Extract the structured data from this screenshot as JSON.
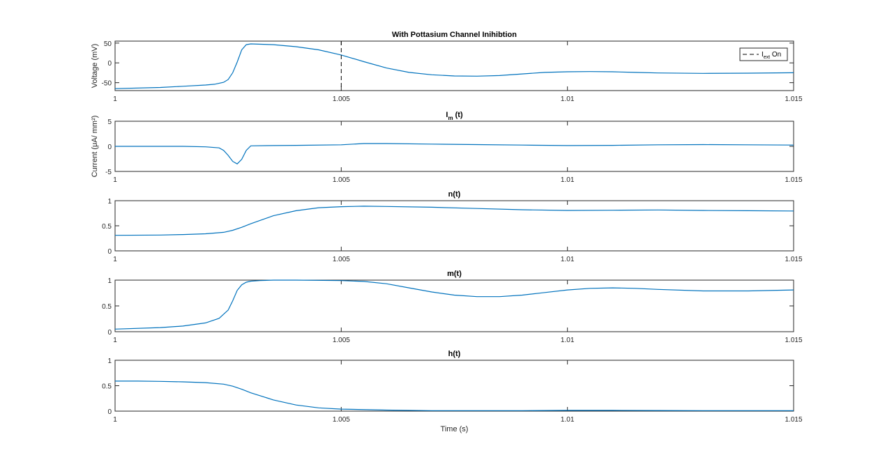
{
  "chart_data": [
    {
      "type": "line",
      "title": "With Pottasium Channel Inihibtion",
      "ylabel": "Voltage (mV)",
      "xlabel": "",
      "xlim": [
        1,
        1.015
      ],
      "ylim": [
        -70,
        55
      ],
      "xticks": [
        "1",
        "1.005",
        "1.01",
        "1.015"
      ],
      "yticks": [
        "50",
        "0",
        "-50"
      ],
      "grid": false,
      "legend": {
        "placement": "top-right",
        "entries": [
          {
            "main": "I",
            "sub": "ext",
            "after": " On"
          }
        ]
      },
      "vline_x": 1.005,
      "series": [
        {
          "color": "#0072BD",
          "x": [
            1.0,
            1.001,
            1.0015,
            1.002,
            1.0022,
            1.0024,
            1.0025,
            1.0026,
            1.0027,
            1.0028,
            1.0029,
            1.003,
            1.0035,
            1.004,
            1.0045,
            1.005,
            1.0055,
            1.006,
            1.0065,
            1.007,
            1.0075,
            1.008,
            1.0085,
            1.009,
            1.0095,
            1.01,
            1.0105,
            1.011,
            1.0115,
            1.012,
            1.013,
            1.014,
            1.015
          ],
          "y": [
            -65,
            -62,
            -59,
            -56,
            -54,
            -49,
            -42,
            -25,
            2,
            33,
            46,
            48,
            46,
            41,
            33,
            20,
            3,
            -13,
            -24,
            -30,
            -33,
            -33.5,
            -32,
            -28,
            -24,
            -22.5,
            -22,
            -22.5,
            -24,
            -25.5,
            -26.5,
            -26,
            -25
          ]
        }
      ]
    },
    {
      "type": "line",
      "title": "I",
      "title_sub": "m",
      "title_after": " (t)",
      "ylabel": "Current (μA/ mm²)",
      "xlabel": "",
      "xlim": [
        1,
        1.015
      ],
      "ylim": [
        -5,
        5
      ],
      "xticks": [
        "1",
        "1.005",
        "1.01",
        "1.015"
      ],
      "yticks": [
        "5",
        "0",
        "-5"
      ],
      "grid": false,
      "series": [
        {
          "color": "#0072BD",
          "x": [
            1.0,
            1.001,
            1.0015,
            1.002,
            1.0023,
            1.0024,
            1.0025,
            1.0026,
            1.0027,
            1.0028,
            1.0029,
            1.003,
            1.0035,
            1.004,
            1.005,
            1.0055,
            1.006,
            1.007,
            1.008,
            1.009,
            1.01,
            1.011,
            1.012,
            1.013,
            1.014,
            1.015
          ],
          "y": [
            0,
            0,
            0,
            -0.1,
            -0.3,
            -0.8,
            -1.8,
            -3.0,
            -3.5,
            -2.6,
            -0.8,
            0.1,
            0.15,
            0.2,
            0.3,
            0.55,
            0.55,
            0.45,
            0.35,
            0.25,
            0.15,
            0.2,
            0.3,
            0.35,
            0.3,
            0.25
          ]
        }
      ]
    },
    {
      "type": "line",
      "title": "n(t)",
      "ylabel": "",
      "xlabel": "",
      "xlim": [
        1,
        1.015
      ],
      "ylim": [
        0,
        1
      ],
      "xticks": [
        "1",
        "1.005",
        "1.01",
        "1.015"
      ],
      "yticks": [
        "1",
        "0.5",
        "0"
      ],
      "grid": false,
      "series": [
        {
          "color": "#0072BD",
          "x": [
            1.0,
            1.001,
            1.0015,
            1.002,
            1.0024,
            1.0026,
            1.0028,
            1.003,
            1.0035,
            1.004,
            1.0045,
            1.005,
            1.0055,
            1.006,
            1.007,
            1.008,
            1.009,
            1.01,
            1.011,
            1.012,
            1.013,
            1.014,
            1.015
          ],
          "y": [
            0.31,
            0.315,
            0.325,
            0.34,
            0.37,
            0.41,
            0.47,
            0.54,
            0.7,
            0.8,
            0.86,
            0.88,
            0.89,
            0.885,
            0.87,
            0.845,
            0.82,
            0.805,
            0.81,
            0.815,
            0.805,
            0.8,
            0.795
          ]
        }
      ]
    },
    {
      "type": "line",
      "title": "m(t)",
      "ylabel": "",
      "xlabel": "",
      "xlim": [
        1,
        1.015
      ],
      "ylim": [
        0,
        1
      ],
      "xticks": [
        "1",
        "1.005",
        "1.01",
        "1.015"
      ],
      "yticks": [
        "1",
        "0.5",
        "0"
      ],
      "grid": false,
      "series": [
        {
          "color": "#0072BD",
          "x": [
            1.0,
            1.001,
            1.0015,
            1.002,
            1.0023,
            1.0025,
            1.0026,
            1.0027,
            1.0028,
            1.0029,
            1.003,
            1.0032,
            1.0035,
            1.004,
            1.005,
            1.0055,
            1.006,
            1.0065,
            1.007,
            1.0075,
            1.008,
            1.0085,
            1.009,
            1.0095,
            1.01,
            1.0105,
            1.011,
            1.0115,
            1.012,
            1.013,
            1.014,
            1.015
          ],
          "y": [
            0.05,
            0.08,
            0.11,
            0.17,
            0.26,
            0.42,
            0.6,
            0.8,
            0.91,
            0.96,
            0.98,
            0.99,
            1.0,
            1.0,
            0.99,
            0.975,
            0.93,
            0.85,
            0.77,
            0.71,
            0.68,
            0.68,
            0.71,
            0.76,
            0.81,
            0.84,
            0.85,
            0.84,
            0.82,
            0.79,
            0.79,
            0.81
          ]
        }
      ]
    },
    {
      "type": "line",
      "title": "h(t)",
      "ylabel": "",
      "xlabel": "Time (s)",
      "xlim": [
        1,
        1.015
      ],
      "ylim": [
        0,
        1
      ],
      "xticks": [
        "1",
        "1.005",
        "1.01",
        "1.015"
      ],
      "yticks": [
        "1",
        "0.5",
        "0"
      ],
      "grid": false,
      "series": [
        {
          "color": "#0072BD",
          "x": [
            1.0,
            1.0005,
            1.001,
            1.0015,
            1.002,
            1.0024,
            1.0026,
            1.0028,
            1.003,
            1.0035,
            1.004,
            1.0045,
            1.005,
            1.006,
            1.007,
            1.008,
            1.009,
            1.01,
            1.011,
            1.012,
            1.013,
            1.014,
            1.015
          ],
          "y": [
            0.59,
            0.59,
            0.585,
            0.575,
            0.56,
            0.53,
            0.49,
            0.43,
            0.36,
            0.22,
            0.12,
            0.065,
            0.04,
            0.02,
            0.01,
            0.01,
            0.01,
            0.015,
            0.015,
            0.012,
            0.01,
            0.01,
            0.01
          ]
        }
      ]
    }
  ]
}
